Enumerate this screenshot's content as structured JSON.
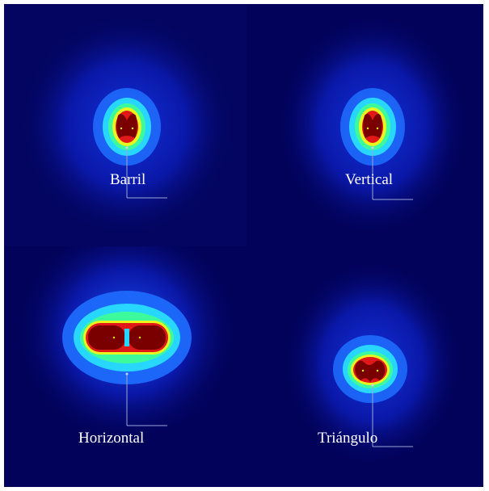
{
  "figure": {
    "background_color": "#02025a",
    "colormap": [
      "#02025a",
      "#0a14c8",
      "#1e6eff",
      "#27d7ff",
      "#3dfa9c",
      "#e9f51f",
      "#ff8a10",
      "#e01818",
      "#7a0000"
    ],
    "panels": [
      {
        "id": "barril",
        "label": "Barril",
        "shape": "barrel"
      },
      {
        "id": "vertical",
        "label": "Vertical",
        "shape": "vertical"
      },
      {
        "id": "horizontal",
        "label": "Horizontal",
        "shape": "horizontal"
      },
      {
        "id": "triangulo",
        "label": "Triángulo",
        "shape": "triangle"
      }
    ]
  }
}
